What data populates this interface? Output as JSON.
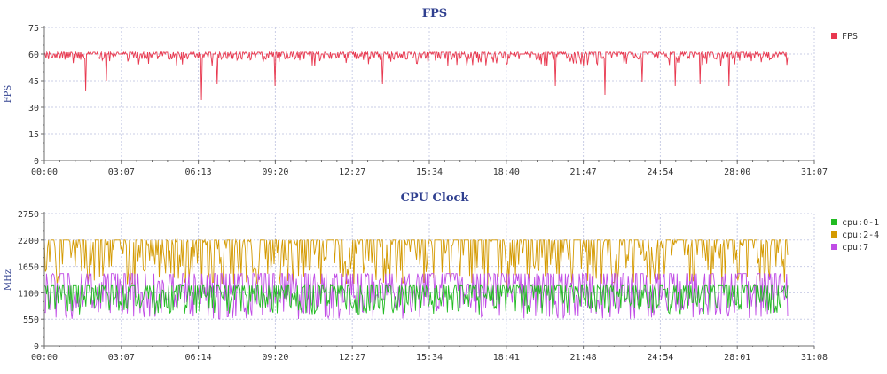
{
  "colors": {
    "axis": "#6d6d6d",
    "title": "#2f3f8f",
    "grid": "#c9cde6",
    "fps": "#e8384f",
    "cpu01": "#22bb22",
    "cpu24": "#d49a00",
    "cpu7": "#c04de6"
  },
  "chart_data": [
    {
      "type": "line",
      "title": "FPS",
      "xlabel": "",
      "ylabel": "FPS",
      "ylim": [
        0,
        75
      ],
      "yticks": [
        "0",
        "15",
        "30",
        "45",
        "60",
        "75"
      ],
      "xticks": [
        "00:00",
        "03:07",
        "06:13",
        "09:20",
        "12:27",
        "15:34",
        "18:40",
        "21:47",
        "24:54",
        "28:00",
        "31:07"
      ],
      "grid": true,
      "legend_position": "right",
      "series": [
        {
          "name": "FPS",
          "color": "#e8384f",
          "baseline": 60,
          "typical_range": [
            57,
            61
          ],
          "dips": [
            {
              "t": "01:40",
              "fps": 39
            },
            {
              "t": "02:30",
              "fps": 45
            },
            {
              "t": "06:20",
              "fps": 34
            },
            {
              "t": "07:00",
              "fps": 43
            },
            {
              "t": "09:20",
              "fps": 42
            },
            {
              "t": "13:40",
              "fps": 43
            },
            {
              "t": "20:40",
              "fps": 42
            },
            {
              "t": "22:40",
              "fps": 37
            },
            {
              "t": "24:10",
              "fps": 44
            },
            {
              "t": "25:30",
              "fps": 42
            },
            {
              "t": "26:30",
              "fps": 43
            },
            {
              "t": "27:40",
              "fps": 42
            }
          ]
        }
      ]
    },
    {
      "type": "line",
      "title": "CPU Clock",
      "xlabel": "",
      "ylabel": "MHz",
      "ylim": [
        0,
        2750
      ],
      "yticks": [
        "0",
        "550",
        "1100",
        "1650",
        "2200",
        "2750"
      ],
      "xticks": [
        "00:00",
        "03:07",
        "06:14",
        "09:20",
        "12:27",
        "15:34",
        "18:41",
        "21:48",
        "24:54",
        "28:01",
        "31:08"
      ],
      "grid": true,
      "legend_position": "right",
      "series": [
        {
          "name": "cpu:0-1",
          "color": "#22bb22",
          "range": [
            600,
            1250
          ],
          "typical": 950
        },
        {
          "name": "cpu:2-4",
          "color": "#d49a00",
          "range": [
            1100,
            2200
          ],
          "typical": 1650
        },
        {
          "name": "cpu:7",
          "color": "#c04de6",
          "range": [
            550,
            1500
          ],
          "typical": 900
        }
      ]
    }
  ]
}
